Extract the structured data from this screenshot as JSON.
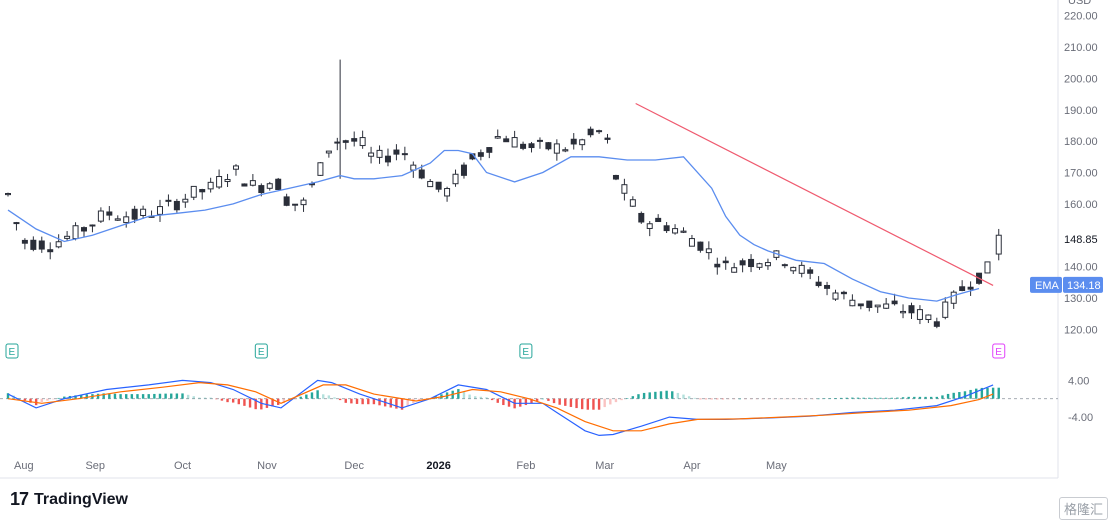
{
  "chart_data": {
    "type": "candlestick",
    "currency_label": "USD",
    "x_tick_labels": [
      "Aug",
      "Sep",
      "Oct",
      "Nov",
      "Dec",
      "2026",
      "Feb",
      "Mar",
      "Apr",
      "May"
    ],
    "price_axis": {
      "ticks": [
        220,
        210,
        200,
        190,
        180,
        170,
        160,
        150,
        140,
        130,
        120
      ],
      "tick_labels": [
        "220.00",
        "210.00",
        "200.00",
        "190.00",
        "180.00",
        "170.00",
        "160.00",
        "",
        "140.00",
        "130.00",
        "120.00"
      ],
      "ylim": [
        115,
        225
      ]
    },
    "last_price": {
      "value": 148.85,
      "label": "148.85"
    },
    "ema": {
      "name": "EMA",
      "value": 134.18,
      "label": "134.18",
      "color": "#5b8def",
      "points": [
        [
          0,
          158
        ],
        [
          10,
          152
        ],
        [
          20,
          148
        ],
        [
          30,
          150
        ],
        [
          40,
          153
        ],
        [
          50,
          156
        ],
        [
          60,
          157
        ],
        [
          70,
          158
        ],
        [
          80,
          160
        ],
        [
          90,
          163
        ],
        [
          100,
          165
        ],
        [
          110,
          167
        ],
        [
          118,
          169
        ],
        [
          123,
          168
        ],
        [
          130,
          168
        ],
        [
          140,
          169
        ],
        [
          150,
          173
        ],
        [
          155,
          177
        ],
        [
          160,
          177
        ],
        [
          165,
          176
        ],
        [
          170,
          170
        ],
        [
          180,
          167
        ],
        [
          190,
          170
        ],
        [
          200,
          175
        ],
        [
          210,
          175
        ],
        [
          220,
          174
        ],
        [
          230,
          174
        ],
        [
          240,
          175
        ],
        [
          250,
          165
        ],
        [
          255,
          156
        ],
        [
          260,
          150
        ],
        [
          265,
          147
        ],
        [
          270,
          145
        ],
        [
          280,
          142
        ],
        [
          290,
          141
        ],
        [
          300,
          136
        ],
        [
          310,
          132
        ],
        [
          320,
          130
        ],
        [
          330,
          129
        ],
        [
          337,
          131
        ],
        [
          345,
          133
        ]
      ]
    },
    "trendline": {
      "color": "#ef5a6f",
      "from": [
        223,
        192
      ],
      "to": [
        350,
        134
      ]
    },
    "earnings_markers": [
      {
        "day": 0,
        "label": "E",
        "status": "past"
      },
      {
        "day": 90,
        "label": "E",
        "status": "past"
      },
      {
        "day": 184,
        "label": "E",
        "status": "past"
      },
      {
        "day": 352,
        "label": "E",
        "status": "upcoming"
      }
    ],
    "macd": {
      "tick_labels": [
        "4.00",
        "-4.00"
      ],
      "ticks": [
        4,
        -4
      ],
      "ylim": [
        -9,
        8
      ],
      "macd_color": "#2962ff",
      "signal_color": "#ff6d00",
      "macd_points": [
        [
          0,
          1
        ],
        [
          10,
          -2
        ],
        [
          20,
          0
        ],
        [
          35,
          2
        ],
        [
          50,
          3
        ],
        [
          62,
          4
        ],
        [
          72,
          3.5
        ],
        [
          80,
          2
        ],
        [
          90,
          -1
        ],
        [
          97,
          -2
        ],
        [
          110,
          4
        ],
        [
          115,
          3.5
        ],
        [
          125,
          1
        ],
        [
          140,
          -2
        ],
        [
          150,
          0
        ],
        [
          160,
          3
        ],
        [
          170,
          2
        ],
        [
          180,
          -1
        ],
        [
          190,
          -1
        ],
        [
          195,
          -3
        ],
        [
          200,
          -5
        ],
        [
          205,
          -7
        ],
        [
          210,
          -8
        ],
        [
          215,
          -7.8
        ],
        [
          225,
          -6
        ],
        [
          235,
          -4
        ],
        [
          245,
          -4.5
        ],
        [
          255,
          -4.5
        ],
        [
          270,
          -4.2
        ],
        [
          285,
          -3.8
        ],
        [
          300,
          -3
        ],
        [
          315,
          -2.5
        ],
        [
          330,
          -1.5
        ],
        [
          340,
          0.5
        ],
        [
          350,
          3
        ]
      ],
      "signal_points": [
        [
          0,
          0
        ],
        [
          12,
          -1
        ],
        [
          25,
          0
        ],
        [
          40,
          1.5
        ],
        [
          55,
          2.5
        ],
        [
          68,
          3.5
        ],
        [
          78,
          3
        ],
        [
          88,
          1.5
        ],
        [
          97,
          -1
        ],
        [
          112,
          3
        ],
        [
          120,
          3
        ],
        [
          130,
          1
        ],
        [
          145,
          -0.5
        ],
        [
          155,
          0.5
        ],
        [
          165,
          2
        ],
        [
          175,
          1.5
        ],
        [
          185,
          0
        ],
        [
          195,
          -2
        ],
        [
          205,
          -5
        ],
        [
          215,
          -7
        ],
        [
          225,
          -7
        ],
        [
          235,
          -5.5
        ],
        [
          245,
          -4.5
        ],
        [
          260,
          -4.4
        ],
        [
          275,
          -4
        ],
        [
          290,
          -3.6
        ],
        [
          305,
          -3
        ],
        [
          320,
          -2.5
        ],
        [
          335,
          -1.5
        ],
        [
          345,
          -0.2
        ],
        [
          350,
          1
        ]
      ],
      "histogram_up_color": "#26a69a",
      "histogram_down_color": "#ef5350"
    }
  },
  "branding": {
    "logo_text": "17",
    "name": "TradingView",
    "watermark": "格隆汇"
  }
}
